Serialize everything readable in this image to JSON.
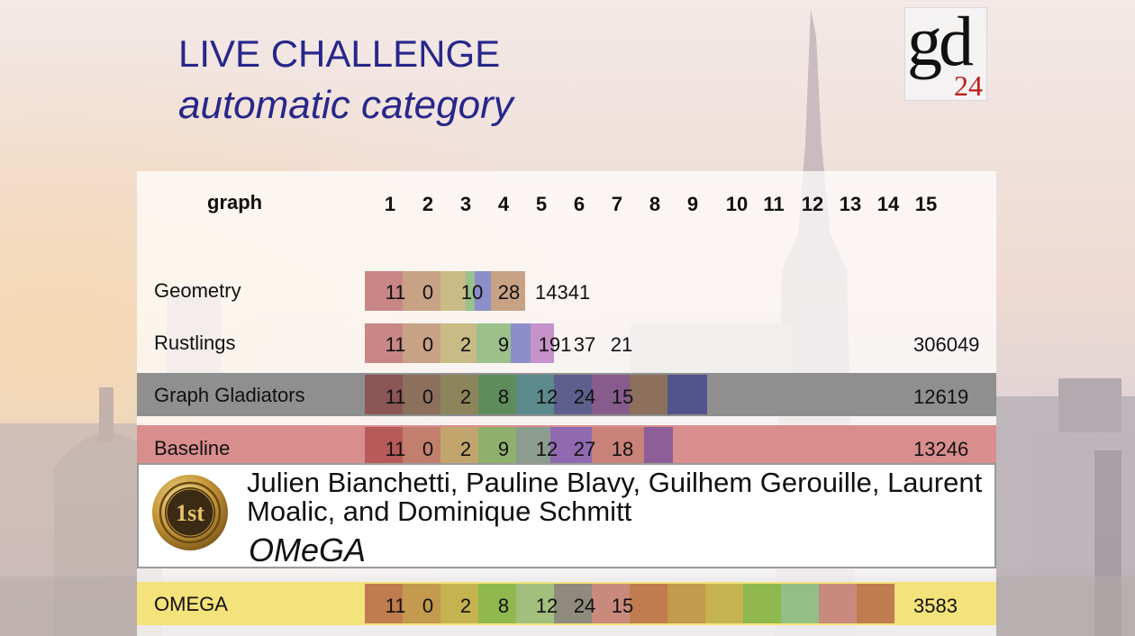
{
  "slide": {
    "title_line1": "LIVE CHALLENGE",
    "title_line2": "automatic category",
    "logo": {
      "main": "gd",
      "year": "24"
    }
  },
  "table": {
    "graph_header": "graph",
    "columns": [
      "1",
      "2",
      "3",
      "4",
      "5",
      "6",
      "7",
      "8",
      "9",
      "10",
      "11",
      "12",
      "13",
      "14",
      "15"
    ],
    "rows": [
      {
        "name": "Geometry",
        "values": [
          "11",
          "0",
          "10",
          "28",
          "14341",
          "",
          "",
          "",
          "",
          "",
          "",
          "",
          "",
          "",
          ""
        ],
        "total": ""
      },
      {
        "name": "Rustlings",
        "values": [
          "11",
          "0",
          "2",
          "9",
          "191",
          "37",
          "21",
          "",
          "",
          "",
          "",
          "",
          "",
          "",
          ""
        ],
        "total": "306049"
      },
      {
        "name": "Graph Gladiators",
        "values": [
          "11",
          "0",
          "2",
          "8",
          "12",
          "24",
          "15",
          "",
          "",
          "",
          "",
          "",
          "",
          "",
          ""
        ],
        "total": "12619"
      },
      {
        "name": "Baseline",
        "values": [
          "11",
          "0",
          "2",
          "9",
          "12",
          "27",
          "18",
          "",
          "",
          "",
          "",
          "",
          "",
          "",
          ""
        ],
        "total": "13246"
      },
      {
        "name": "OMEGA",
        "values": [
          "11",
          "0",
          "2",
          "8",
          "12",
          "24",
          "15",
          "",
          "",
          "",
          "",
          "",
          "",
          "",
          ""
        ],
        "total": "3583"
      }
    ]
  },
  "winner": {
    "medal_text": "1st",
    "authors": "Julien Bianchetti, Pauline Blavy, Guilhem Gerouille, Laurent Moalic, and Dominique Schmitt",
    "team": "OMeGA"
  },
  "colors": {
    "title": "#27278a",
    "logo_year": "#c01e1e",
    "gladiators_row": "#8f8f8f",
    "baseline_row": "#d98e8e",
    "omega_row": "#f4e27a"
  }
}
